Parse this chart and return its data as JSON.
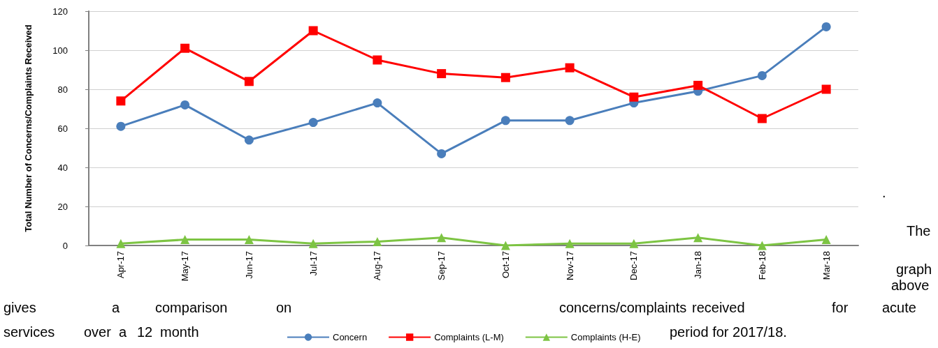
{
  "chart_data": {
    "type": "line",
    "ylabel": "Total Number of Concerns/Complaints Received",
    "categories": [
      "Apr-17",
      "May-17",
      "Jun-17",
      "Jul-17",
      "Aug-17",
      "Sep-17",
      "Oct-17",
      "Nov-17",
      "Dec-17",
      "Jan-18",
      "Feb-18",
      "Mar-18"
    ],
    "series": [
      {
        "name": "Concern",
        "color": "#4a7ebb",
        "marker": "circle",
        "values": [
          61,
          72,
          54,
          63,
          73,
          47,
          64,
          64,
          73,
          79,
          87,
          112
        ]
      },
      {
        "name": "Complaints (L-M)",
        "color": "#ff0000",
        "marker": "square",
        "values": [
          74,
          101,
          84,
          110,
          95,
          88,
          86,
          91,
          76,
          82,
          65,
          80
        ]
      },
      {
        "name": "Complaints (H-E)",
        "color": "#7dc443",
        "marker": "triangle",
        "values": [
          1,
          3,
          3,
          1,
          2,
          4,
          0,
          1,
          1,
          4,
          0,
          3
        ]
      }
    ],
    "ylim": [
      0,
      120
    ],
    "yticks": [
      0,
      20,
      40,
      60,
      80,
      100,
      120
    ],
    "grid": "y",
    "legend": "bottom",
    "annotations": [
      ".",
      "The",
      "graph",
      "above",
      "gives",
      "a",
      "comparison",
      "on",
      "concerns/complaints",
      "received",
      "for",
      "acute",
      "services",
      "over",
      "a",
      "12",
      "month",
      "period for 2017/18."
    ]
  }
}
